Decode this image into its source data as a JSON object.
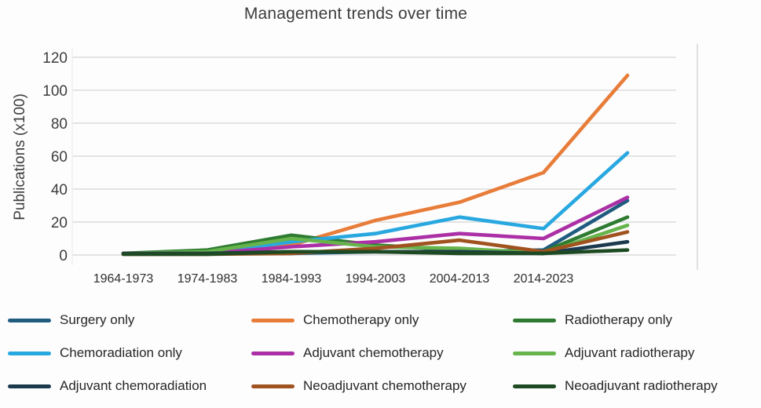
{
  "chart_data": {
    "type": "line",
    "title": "Management trends over time",
    "xlabel": "",
    "ylabel": "Publications (x100)",
    "ylim": [
      0,
      120
    ],
    "yticks": [
      0,
      20,
      40,
      60,
      80,
      100,
      120
    ],
    "grid": "horizontal",
    "legend_position": "bottom",
    "categories": [
      "1964-1973",
      "1974-1983",
      "1984-1993",
      "1994-2003",
      "2004-2013",
      "2014-2023",
      ""
    ],
    "series": [
      {
        "name": "Surgery only",
        "color": "#1f5c80",
        "values": [
          1,
          1,
          1,
          2,
          2,
          3,
          33
        ]
      },
      {
        "name": "Chemotherapy only",
        "color": "#e87d3a",
        "values": [
          1,
          1,
          6,
          21,
          32,
          50,
          109
        ]
      },
      {
        "name": "Radiotherapy only",
        "color": "#2e7b31",
        "values": [
          1,
          3,
          12,
          6,
          3,
          2,
          23
        ]
      },
      {
        "name": "Chemoradiation only",
        "color": "#29a8e0",
        "values": [
          1,
          1,
          8,
          13,
          23,
          16,
          62
        ]
      },
      {
        "name": "Adjuvant chemotherapy",
        "color": "#ab2fa5",
        "values": [
          1,
          1,
          5,
          8,
          13,
          10,
          35
        ]
      },
      {
        "name": "Adjuvant radiotherapy",
        "color": "#66b44b",
        "values": [
          1,
          2,
          10,
          5,
          4,
          1,
          18
        ]
      },
      {
        "name": "Adjuvant chemoradiation",
        "color": "#1c3a4e",
        "values": [
          1,
          1,
          2,
          2,
          2,
          1,
          8
        ]
      },
      {
        "name": "Neoadjuvant chemotherapy",
        "color": "#a0521f",
        "values": [
          0.5,
          0.5,
          1,
          4,
          9,
          2,
          14
        ]
      },
      {
        "name": "Neoadjuvant radiotherapy",
        "color": "#1d4a22",
        "values": [
          0.5,
          0.5,
          2,
          2,
          1,
          1,
          3
        ]
      }
    ],
    "legend_columns": [
      [
        "Surgery only",
        "Chemoradiation only",
        "Adjuvant chemoradiation"
      ],
      [
        "Chemotherapy only",
        "Adjuvant chemotherapy",
        "Neoadjuvant chemotherapy"
      ],
      [
        "Radiotherapy only",
        "Adjuvant radiotherapy",
        "Neoadjuvant radiotherapy"
      ]
    ],
    "colors": {
      "grid": "#e4e4e4",
      "axis_text": "#3d3d3d",
      "tick_text": "#2f2f2f",
      "legend_text": "#262626"
    }
  }
}
